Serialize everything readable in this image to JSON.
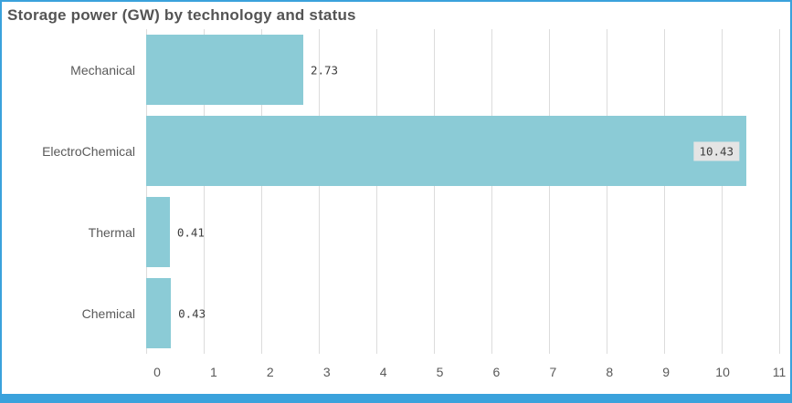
{
  "title": "Storage power (GW) by technology and status",
  "colors": {
    "frame": "#3aa2dc",
    "bar": "#8bcbd6",
    "title": "#545454",
    "axis_text": "#595959",
    "gridline": "#dcdcdc",
    "value_label_bg": "#e4e4e4"
  },
  "chart_data": {
    "type": "bar",
    "orientation": "horizontal",
    "title": "Storage power (GW) by technology and status",
    "categories": [
      "Mechanical",
      "ElectroChemical",
      "Thermal",
      "Chemical"
    ],
    "values": [
      2.73,
      10.43,
      0.41,
      0.43
    ],
    "value_labels": [
      "2.73",
      "10.43",
      "0.41",
      "0.43"
    ],
    "xlabel": "",
    "ylabel": "",
    "xlim": [
      0,
      11
    ],
    "x_ticks": [
      0,
      1,
      2,
      3,
      4,
      5,
      6,
      7,
      8,
      9,
      10,
      11
    ],
    "grid": "vertical",
    "legend": "none"
  }
}
